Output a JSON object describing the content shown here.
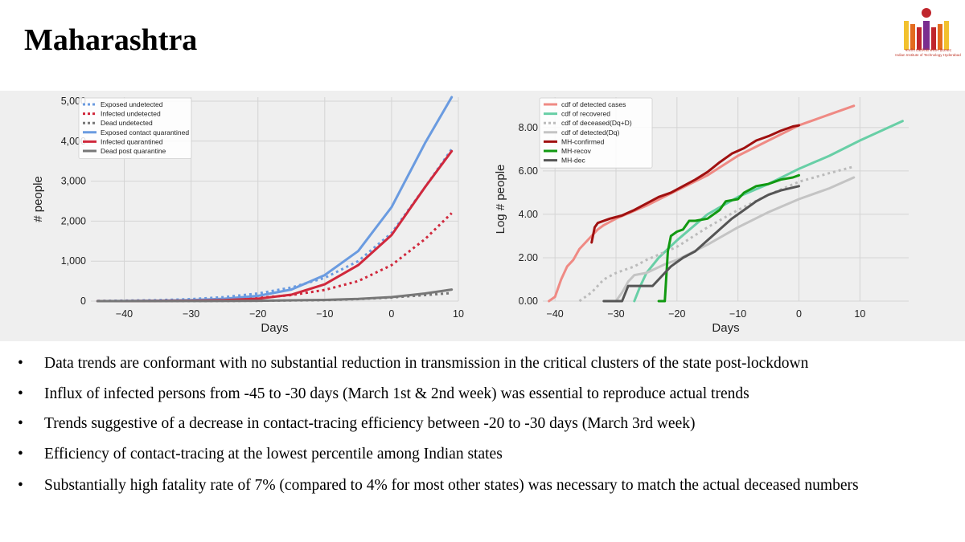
{
  "slide": {
    "title": "Maharashtra"
  },
  "logo": {
    "line1": "भारतीय प्रौद्योगिकी संस्थान हैदराबाद",
    "line2": "Indian Institute of Technology Hyderabad",
    "colors": [
      "#f2c12e",
      "#e36b1f",
      "#c0262d",
      "#7b2e8f"
    ]
  },
  "chart_data": [
    {
      "type": "line",
      "xlabel": "Days",
      "ylabel": "# people",
      "xlim": [
        -45,
        10
      ],
      "ylim": [
        0,
        5100
      ],
      "xticks": [
        -40,
        -30,
        -20,
        -10,
        0,
        10
      ],
      "yticks": [
        0,
        1000,
        2000,
        3000,
        4000,
        5000
      ],
      "ytick_labels": [
        "0",
        "1,000",
        "2,000",
        "3,000",
        "4,000",
        "5,000"
      ],
      "xtick_labels": [
        "−40",
        "−30",
        "−20",
        "−10",
        "0",
        "10"
      ],
      "grid": true,
      "legend_position": "top-left",
      "series": [
        {
          "name": "Exposed undetected",
          "color": "#6a9be0",
          "style": "dotted",
          "x": [
            -44,
            -40,
            -35,
            -30,
            -25,
            -20,
            -15,
            -10,
            -5,
            0,
            5,
            9
          ],
          "y": [
            5,
            12,
            25,
            50,
            100,
            190,
            340,
            580,
            1000,
            1700,
            2850,
            3800
          ]
        },
        {
          "name": "Infected undetected",
          "color": "#d0283c",
          "style": "dotted",
          "x": [
            -44,
            -40,
            -35,
            -30,
            -25,
            -20,
            -15,
            -10,
            -5,
            0,
            5,
            9
          ],
          "y": [
            2,
            5,
            10,
            20,
            40,
            80,
            150,
            280,
            500,
            900,
            1550,
            2200
          ]
        },
        {
          "name": "Dead undetected",
          "color": "#777777",
          "style": "dotted",
          "x": [
            -44,
            -30,
            -20,
            -10,
            -5,
            0,
            5,
            9
          ],
          "y": [
            0,
            2,
            8,
            25,
            50,
            90,
            150,
            200
          ]
        },
        {
          "name": "Exposed contact quarantined",
          "color": "#6a9be0",
          "style": "solid",
          "x": [
            -44,
            -40,
            -35,
            -30,
            -25,
            -20,
            -15,
            -10,
            -5,
            0,
            5,
            9
          ],
          "y": [
            0,
            3,
            10,
            25,
            60,
            130,
            290,
            650,
            1250,
            2350,
            3950,
            5100
          ]
        },
        {
          "name": "Infected quarantined",
          "color": "#d0283c",
          "style": "solid",
          "x": [
            -44,
            -40,
            -35,
            -30,
            -25,
            -20,
            -15,
            -10,
            -5,
            0,
            5,
            9
          ],
          "y": [
            0,
            1,
            4,
            10,
            25,
            60,
            160,
            420,
            900,
            1650,
            2850,
            3750
          ]
        },
        {
          "name": "Dead post quarantine",
          "color": "#777777",
          "style": "solid",
          "x": [
            -44,
            -30,
            -20,
            -10,
            -5,
            0,
            5,
            9
          ],
          "y": [
            0,
            2,
            8,
            30,
            55,
            100,
            190,
            290
          ]
        }
      ]
    },
    {
      "type": "line",
      "xlabel": "Days",
      "ylabel": "Log # people",
      "xlim": [
        -42,
        18
      ],
      "ylim": [
        0,
        9.4
      ],
      "xticks": [
        -40,
        -30,
        -20,
        -10,
        0,
        10
      ],
      "yticks": [
        0,
        2,
        4,
        6,
        8
      ],
      "ytick_labels": [
        "0.00",
        "2.00",
        "4.00",
        "6.00",
        "8.00"
      ],
      "xtick_labels": [
        "−40",
        "−30",
        "−20",
        "−10",
        "0",
        "10"
      ],
      "grid": true,
      "legend_position": "top-left",
      "series": [
        {
          "name": "cdf of detected cases",
          "color": "#ef8a84",
          "style": "solid",
          "x": [
            -41,
            -40,
            -39,
            -38,
            -37,
            -36,
            -35,
            -34,
            -33,
            -32,
            -30,
            -25,
            -20,
            -15,
            -10,
            -5,
            0,
            5,
            9
          ],
          "y": [
            0,
            0.2,
            1.0,
            1.6,
            1.9,
            2.4,
            2.7,
            3.0,
            3.3,
            3.5,
            3.8,
            4.4,
            5.1,
            5.8,
            6.7,
            7.4,
            8.1,
            8.6,
            9.0
          ]
        },
        {
          "name": "cdf of recovered",
          "color": "#68cfa6",
          "style": "solid",
          "x": [
            -27,
            -26,
            -25,
            -23,
            -20,
            -15,
            -10,
            -5,
            0,
            5,
            10,
            17
          ],
          "y": [
            0,
            0.7,
            1.3,
            2.0,
            2.8,
            4.0,
            4.8,
            5.4,
            6.1,
            6.7,
            7.4,
            8.3
          ]
        },
        {
          "name": "cdf of deceased(Dq+D)",
          "color": "#bbbbbb",
          "style": "dotted",
          "x": [
            -36,
            -34,
            -32,
            -30,
            -27,
            -25,
            -20,
            -15,
            -10,
            -5,
            0,
            5,
            9
          ],
          "y": [
            0,
            0.4,
            1.0,
            1.3,
            1.6,
            1.9,
            2.5,
            3.4,
            4.2,
            4.9,
            5.5,
            5.9,
            6.2
          ]
        },
        {
          "name": "cdf of detected(Dq)",
          "color": "#c4c4c4",
          "style": "solid",
          "x": [
            -30,
            -29,
            -28,
            -27,
            -25,
            -22,
            -20,
            -15,
            -10,
            -5,
            0,
            5,
            9
          ],
          "y": [
            0,
            0.4,
            0.9,
            1.2,
            1.3,
            1.7,
            1.9,
            2.6,
            3.4,
            4.1,
            4.7,
            5.2,
            5.7
          ]
        },
        {
          "name": "MH-confirmed",
          "color": "#a01010",
          "style": "solid",
          "x": [
            -34,
            -33.5,
            -33,
            -31,
            -29,
            -27,
            -25,
            -23,
            -21,
            -19,
            -17,
            -15,
            -13,
            -11,
            -9,
            -7,
            -5,
            -3,
            -1,
            0
          ],
          "y": [
            2.7,
            3.4,
            3.6,
            3.8,
            3.95,
            4.2,
            4.5,
            4.8,
            5.0,
            5.3,
            5.6,
            5.95,
            6.4,
            6.8,
            7.05,
            7.4,
            7.6,
            7.85,
            8.05,
            8.1
          ]
        },
        {
          "name": "MH-recov",
          "color": "#119911",
          "style": "solid",
          "x": [
            -23,
            -22,
            -21.5,
            -21,
            -20,
            -19,
            -18,
            -17,
            -15,
            -13,
            -12,
            -10,
            -9,
            -7,
            -5,
            -3,
            -1,
            0
          ],
          "y": [
            0,
            0,
            2.3,
            3.0,
            3.2,
            3.3,
            3.7,
            3.7,
            3.8,
            4.2,
            4.6,
            4.7,
            5.0,
            5.3,
            5.4,
            5.6,
            5.7,
            5.8
          ]
        },
        {
          "name": "MH-dec",
          "color": "#555555",
          "style": "solid",
          "x": [
            -32,
            -30,
            -29,
            -28,
            -27,
            -26,
            -25,
            -24,
            -23,
            -22,
            -21,
            -20,
            -19,
            -17,
            -15,
            -13,
            -11,
            -9,
            -7,
            -5,
            -3,
            0
          ],
          "y": [
            0,
            0,
            0,
            0.7,
            0.7,
            0.7,
            0.7,
            0.7,
            1.0,
            1.3,
            1.6,
            1.8,
            2.0,
            2.3,
            2.8,
            3.3,
            3.8,
            4.2,
            4.6,
            4.9,
            5.1,
            5.3
          ]
        }
      ]
    }
  ],
  "bullets": [
    "Data trends are conformant with no substantial reduction in transmission in the critical clusters of the state post-lockdown",
    "Influx of infected persons from -45 to -30 days (March 1st & 2nd week) was essential to reproduce actual trends",
    "Trends suggestive of a decrease in contact-tracing efficiency between -20 to -30 days (March 3rd week)",
    "Efficiency of contact-tracing at the lowest percentile among Indian states",
    "Substantially high fatality rate of 7% (compared to 4% for most other states) was necessary to match the actual deceased numbers"
  ]
}
